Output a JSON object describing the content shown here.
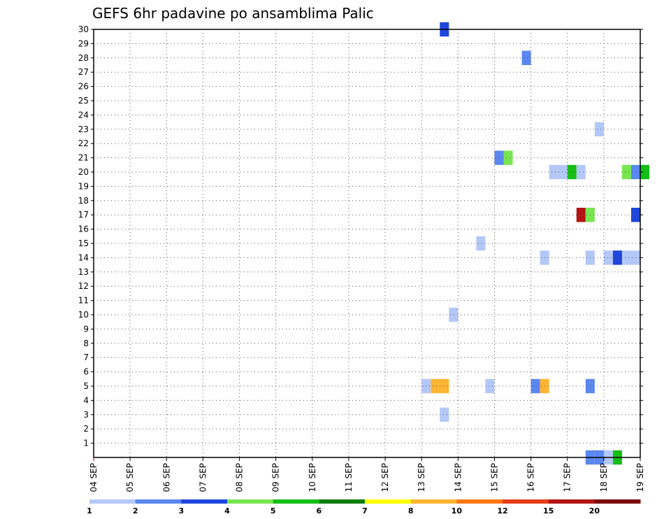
{
  "chart_data": {
    "type": "heatmap",
    "title": "GEFS 6hr padavine po ansamblima Palic",
    "xlabel": "",
    "ylabel": "",
    "x_ticks": [
      "04 SEP",
      "05 SEP",
      "06 SEP",
      "07 SEP",
      "08 SEP",
      "09 SEP",
      "10 SEP",
      "11 SEP",
      "12 SEP",
      "13 SEP",
      "14 SEP",
      "15 SEP",
      "16 SEP",
      "17 SEP",
      "18 SEP",
      "19 SEP"
    ],
    "y_ticks": [
      "1",
      "2",
      "3",
      "4",
      "5",
      "6",
      "7",
      "8",
      "9",
      "10",
      "11",
      "12",
      "13",
      "14",
      "15",
      "16",
      "17",
      "18",
      "19",
      "20",
      "21",
      "22",
      "23",
      "24",
      "25",
      "26",
      "27",
      "28",
      "29",
      "30"
    ],
    "grid": true,
    "colorbar": {
      "labels": [
        "1",
        "2",
        "3",
        "4",
        "5",
        "6",
        "7",
        "8",
        "10",
        "12",
        "15",
        "20"
      ],
      "colors": [
        "#b4c8f8",
        "#5a87f0",
        "#1e46dc",
        "#78e650",
        "#14be14",
        "#0a7d0a",
        "#ffff00",
        "#ffb432",
        "#fa7814",
        "#e63c14",
        "#b41414",
        "#7d0a0a"
      ]
    },
    "cells": [
      {
        "date": "13 SEP",
        "hour": 12,
        "member": 30,
        "color": "#1e46dc"
      },
      {
        "date": "15 SEP",
        "hour": 18,
        "member": 28,
        "color": "#5a87f0"
      },
      {
        "date": "17 SEP",
        "hour": 18,
        "member": 23,
        "color": "#b4c8f8"
      },
      {
        "date": "15 SEP",
        "hour": 0,
        "member": 21,
        "color": "#5a87f0"
      },
      {
        "date": "15 SEP",
        "hour": 6,
        "member": 21,
        "color": "#78e650"
      },
      {
        "date": "16 SEP",
        "hour": 12,
        "member": 20,
        "color": "#b4c8f8"
      },
      {
        "date": "16 SEP",
        "hour": 18,
        "member": 20,
        "color": "#b4c8f8"
      },
      {
        "date": "17 SEP",
        "hour": 0,
        "member": 20,
        "color": "#14be14"
      },
      {
        "date": "17 SEP",
        "hour": 6,
        "member": 20,
        "color": "#b4c8f8"
      },
      {
        "date": "18 SEP",
        "hour": 12,
        "member": 20,
        "color": "#78e650"
      },
      {
        "date": "18 SEP",
        "hour": 18,
        "member": 20,
        "color": "#5a87f0"
      },
      {
        "date": "19 SEP",
        "hour": 0,
        "member": 20,
        "color": "#14be14"
      },
      {
        "date": "17 SEP",
        "hour": 6,
        "member": 17,
        "color": "#b41414"
      },
      {
        "date": "17 SEP",
        "hour": 12,
        "member": 17,
        "color": "#78e650"
      },
      {
        "date": "18 SEP",
        "hour": 18,
        "member": 17,
        "color": "#1e46dc"
      },
      {
        "date": "14 SEP",
        "hour": 12,
        "member": 15,
        "color": "#b4c8f8"
      },
      {
        "date": "16 SEP",
        "hour": 6,
        "member": 14,
        "color": "#b4c8f8"
      },
      {
        "date": "17 SEP",
        "hour": 12,
        "member": 14,
        "color": "#b4c8f8"
      },
      {
        "date": "18 SEP",
        "hour": 0,
        "member": 14,
        "color": "#b4c8f8"
      },
      {
        "date": "18 SEP",
        "hour": 6,
        "member": 14,
        "color": "#1e46dc"
      },
      {
        "date": "18 SEP",
        "hour": 12,
        "member": 14,
        "color": "#b4c8f8"
      },
      {
        "date": "18 SEP",
        "hour": 18,
        "member": 14,
        "color": "#b4c8f8"
      },
      {
        "date": "13 SEP",
        "hour": 18,
        "member": 10,
        "color": "#b4c8f8"
      },
      {
        "date": "13 SEP",
        "hour": 0,
        "member": 5,
        "color": "#b4c8f8"
      },
      {
        "date": "13 SEP",
        "hour": 6,
        "member": 5,
        "color": "#ffb432"
      },
      {
        "date": "13 SEP",
        "hour": 12,
        "member": 5,
        "color": "#ffb432"
      },
      {
        "date": "14 SEP",
        "hour": 18,
        "member": 5,
        "color": "#b4c8f8"
      },
      {
        "date": "16 SEP",
        "hour": 0,
        "member": 5,
        "color": "#5a87f0"
      },
      {
        "date": "16 SEP",
        "hour": 6,
        "member": 5,
        "color": "#ffb432"
      },
      {
        "date": "17 SEP",
        "hour": 12,
        "member": 5,
        "color": "#5a87f0"
      },
      {
        "date": "13 SEP",
        "hour": 12,
        "member": 3,
        "color": "#b4c8f8"
      },
      {
        "date": "17 SEP",
        "hour": 12,
        "member": 0,
        "color": "#5a87f0"
      },
      {
        "date": "17 SEP",
        "hour": 18,
        "member": 0,
        "color": "#5a87f0"
      },
      {
        "date": "18 SEP",
        "hour": 0,
        "member": 0,
        "color": "#b4c8f8"
      },
      {
        "date": "18 SEP",
        "hour": 6,
        "member": 0,
        "color": "#14be14"
      }
    ]
  }
}
